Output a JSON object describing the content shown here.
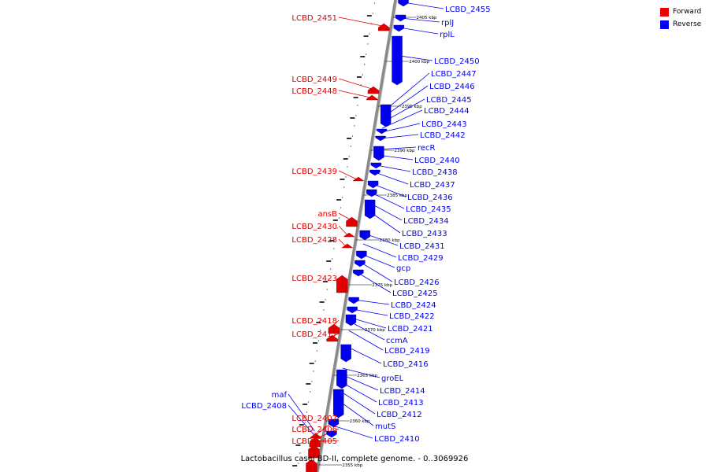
{
  "caption": "Lactobacillus casei BD-II, complete genome. - 0..3069926",
  "colors": {
    "forward": "#e00000",
    "reverse": "#0000ee",
    "backbone": "#8a8a8a",
    "ticks": "#000000"
  },
  "legend": [
    {
      "label": "Forward",
      "color": "#ee0000"
    },
    {
      "label": "Reverse",
      "color": "#0000ee"
    }
  ],
  "scale_labels": [
    "2405 kbp",
    "2400 kbp",
    "2395 kbp",
    "2390 kbp",
    "2385 kbp",
    "2380 kbp",
    "2375 kbp",
    "2370 kbp",
    "2365 kbp",
    "2360 kbp",
    "2355 kbp"
  ],
  "forward_genes": [
    "LCBD_2451",
    "LCBD_2449",
    "LCBD_2448",
    "LCBD_2439",
    "ansB",
    "LCBD_2430",
    "LCBD_2428",
    "LCBD_2423",
    "LCBD_2418",
    "LCBD_2417",
    "LCBD_2407",
    "LCBD_2406",
    "LCBD_2405"
  ],
  "reverse_genes": [
    "LCBD_2455",
    "rplJ",
    "rplL",
    "LCBD_2450",
    "LCBD_2447",
    "LCBD_2446",
    "LCBD_2445",
    "LCBD_2444",
    "LCBD_2443",
    "LCBD_2442",
    "recR",
    "LCBD_2440",
    "LCBD_2438",
    "LCBD_2437",
    "LCBD_2436",
    "LCBD_2435",
    "LCBD_2434",
    "LCBD_2433",
    "LCBD_2431",
    "LCBD_2429",
    "gcp",
    "LCBD_2426",
    "LCBD_2425",
    "LCBD_2424",
    "LCBD_2422",
    "LCBD_2421",
    "ccmA",
    "LCBD_2419",
    "LCBD_2416",
    "groEL",
    "LCBD_2414",
    "LCBD_2413",
    "LCBD_2412",
    "mutS",
    "LCBD_2410",
    "maf",
    "LCBD_2408"
  ]
}
